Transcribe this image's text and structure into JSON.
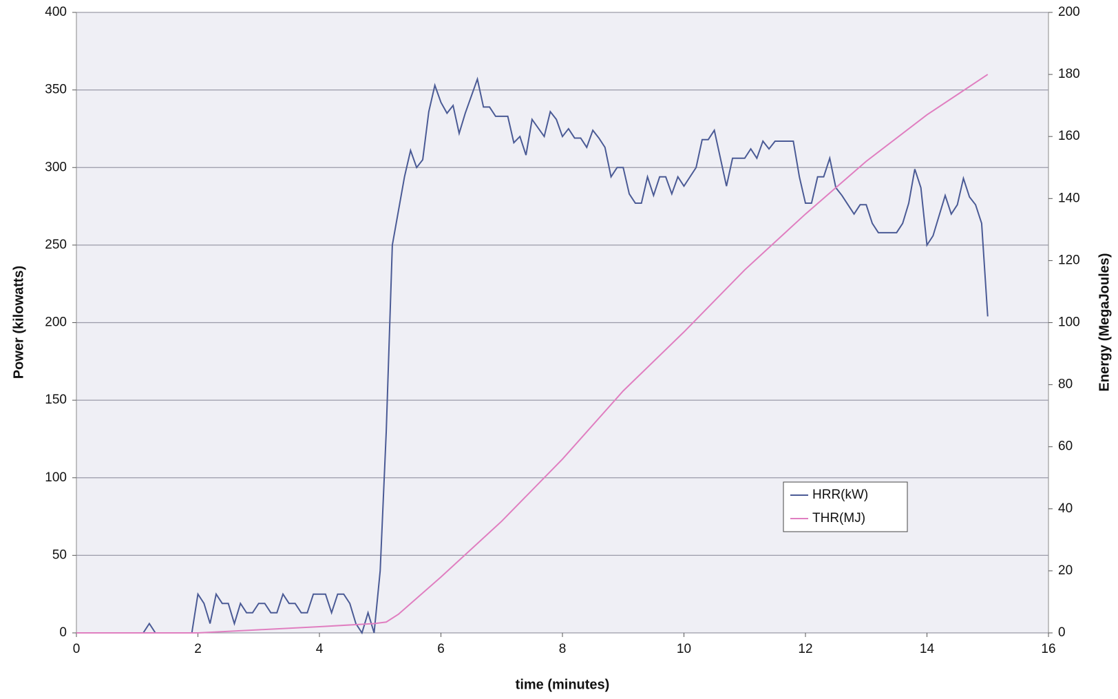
{
  "chart_data": {
    "type": "line",
    "xlabel": "time (minutes)",
    "ylabel": "Power (kilowatts)",
    "y2label": "Energy (MegaJoules)",
    "xlim": [
      0,
      16
    ],
    "xticks": [
      0,
      2,
      4,
      6,
      8,
      10,
      12,
      14,
      16
    ],
    "ylim": [
      0,
      400
    ],
    "yticks": [
      0,
      50,
      100,
      150,
      200,
      250,
      300,
      350,
      400
    ],
    "y2lim": [
      0,
      200
    ],
    "y2ticks": [
      0,
      20,
      40,
      60,
      80,
      100,
      120,
      140,
      160,
      180,
      200
    ],
    "grid": true,
    "legend": "lower right",
    "series": [
      {
        "name": "HRR(kW)",
        "color": "#4a5a95",
        "x": [
          0,
          1.1,
          1.2,
          1.3,
          1.9,
          2.0,
          2.1,
          2.2,
          2.3,
          2.4,
          2.5,
          2.6,
          2.7,
          2.8,
          2.9,
          3.0,
          3.1,
          3.2,
          3.3,
          3.4,
          3.5,
          3.6,
          3.7,
          3.8,
          3.9,
          4.0,
          4.1,
          4.2,
          4.3,
          4.4,
          4.5,
          4.6,
          4.7,
          4.8,
          4.9,
          5.0,
          5.1,
          5.2,
          5.4,
          5.5,
          5.6,
          5.7,
          5.8,
          5.9,
          6.0,
          6.1,
          6.2,
          6.3,
          6.4,
          6.6,
          6.7,
          6.8,
          6.9,
          7.0,
          7.1,
          7.2,
          7.3,
          7.4,
          7.5,
          7.7,
          7.8,
          7.9,
          8.0,
          8.1,
          8.2,
          8.3,
          8.4,
          8.5,
          8.6,
          8.7,
          8.8,
          8.9,
          9.0,
          9.1,
          9.2,
          9.3,
          9.4,
          9.5,
          9.6,
          9.7,
          9.8,
          9.9,
          10.0,
          10.1,
          10.2,
          10.3,
          10.4,
          10.5,
          10.7,
          10.8,
          11.0,
          11.1,
          11.2,
          11.3,
          11.4,
          11.5,
          11.8,
          11.9,
          12.0,
          12.1,
          12.2,
          12.3,
          12.4,
          12.5,
          12.6,
          12.7,
          12.8,
          12.9,
          13.0,
          13.1,
          13.2,
          13.4,
          13.5,
          13.6,
          13.7,
          13.8,
          13.9,
          14.0,
          14.1,
          14.3,
          14.4,
          14.5,
          14.6,
          14.7,
          14.8,
          14.9,
          15.0
        ],
        "values": [
          0,
          0,
          6,
          0,
          0,
          25,
          19,
          6,
          25,
          19,
          19,
          6,
          19,
          13,
          13,
          19,
          19,
          13,
          13,
          25,
          19,
          19,
          13,
          13,
          25,
          25,
          25,
          13,
          25,
          25,
          19,
          6,
          0,
          13,
          0,
          40,
          130,
          250,
          294,
          311,
          300,
          305,
          336,
          353,
          342,
          335,
          340,
          322,
          335,
          357,
          339,
          339,
          333,
          333,
          333,
          316,
          320,
          308,
          331,
          320,
          336,
          331,
          320,
          325,
          319,
          319,
          313,
          324,
          319,
          313,
          294,
          300,
          300,
          283,
          277,
          277,
          294,
          282,
          294,
          294,
          283,
          294,
          288,
          294,
          300,
          318,
          318,
          324,
          288,
          306,
          306,
          312,
          306,
          317,
          312,
          317,
          317,
          294,
          277,
          277,
          294,
          294,
          306,
          287,
          282,
          276,
          270,
          276,
          276,
          264,
          258,
          258,
          258,
          264,
          277,
          299,
          287,
          250,
          256,
          282,
          270,
          276,
          293,
          281,
          276,
          264,
          204
        ]
      },
      {
        "name": "THR(MJ)",
        "color": "#e07ec0",
        "axis": "y2",
        "x": [
          0,
          2,
          3,
          4,
          4.9,
          5.1,
          5.3,
          6,
          7,
          8,
          9,
          10,
          11,
          12,
          13,
          14,
          15
        ],
        "values": [
          0,
          0,
          1,
          2,
          3,
          3.5,
          6,
          18,
          36,
          56,
          78,
          97,
          117,
          135,
          152,
          167,
          180
        ]
      }
    ]
  }
}
